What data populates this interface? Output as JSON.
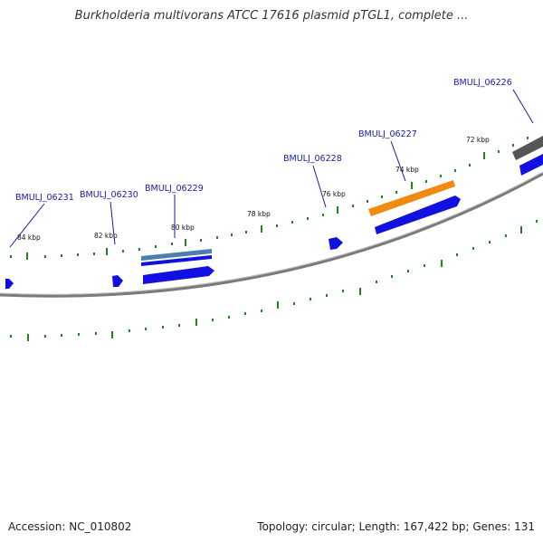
{
  "title": "Burkholderia multivorans ATCC 17616 plasmid pTGL1, complete ...",
  "footer": {
    "accession_label": "Accession: NC_010802",
    "summary": "Topology: circular; Length: 167,422 bp; Genes: 131"
  },
  "colors": {
    "backbone": "#7a7a7a",
    "gene_forward": "#1010e0",
    "gene_highlight": "#f08a10",
    "gene_dark": "#555555",
    "gene_steel": "#4a7fb0",
    "gc_ticks": "#1a8a1a",
    "label": "#1a1aaa"
  },
  "position_ticks": [
    {
      "label": "84 kbp"
    },
    {
      "label": "82 kbp"
    },
    {
      "label": "80 kbp"
    },
    {
      "label": "78 kbp"
    },
    {
      "label": "76 kbp"
    },
    {
      "label": "74 kbp"
    },
    {
      "label": "72 kbp"
    }
  ],
  "gene_labels": [
    {
      "label": "BMULJ_06231"
    },
    {
      "label": "BMULJ_06230"
    },
    {
      "label": "BMULJ_06229"
    },
    {
      "label": "BMULJ_06228"
    },
    {
      "label": "BMULJ_06227"
    },
    {
      "label": "BMULJ_06226"
    }
  ]
}
